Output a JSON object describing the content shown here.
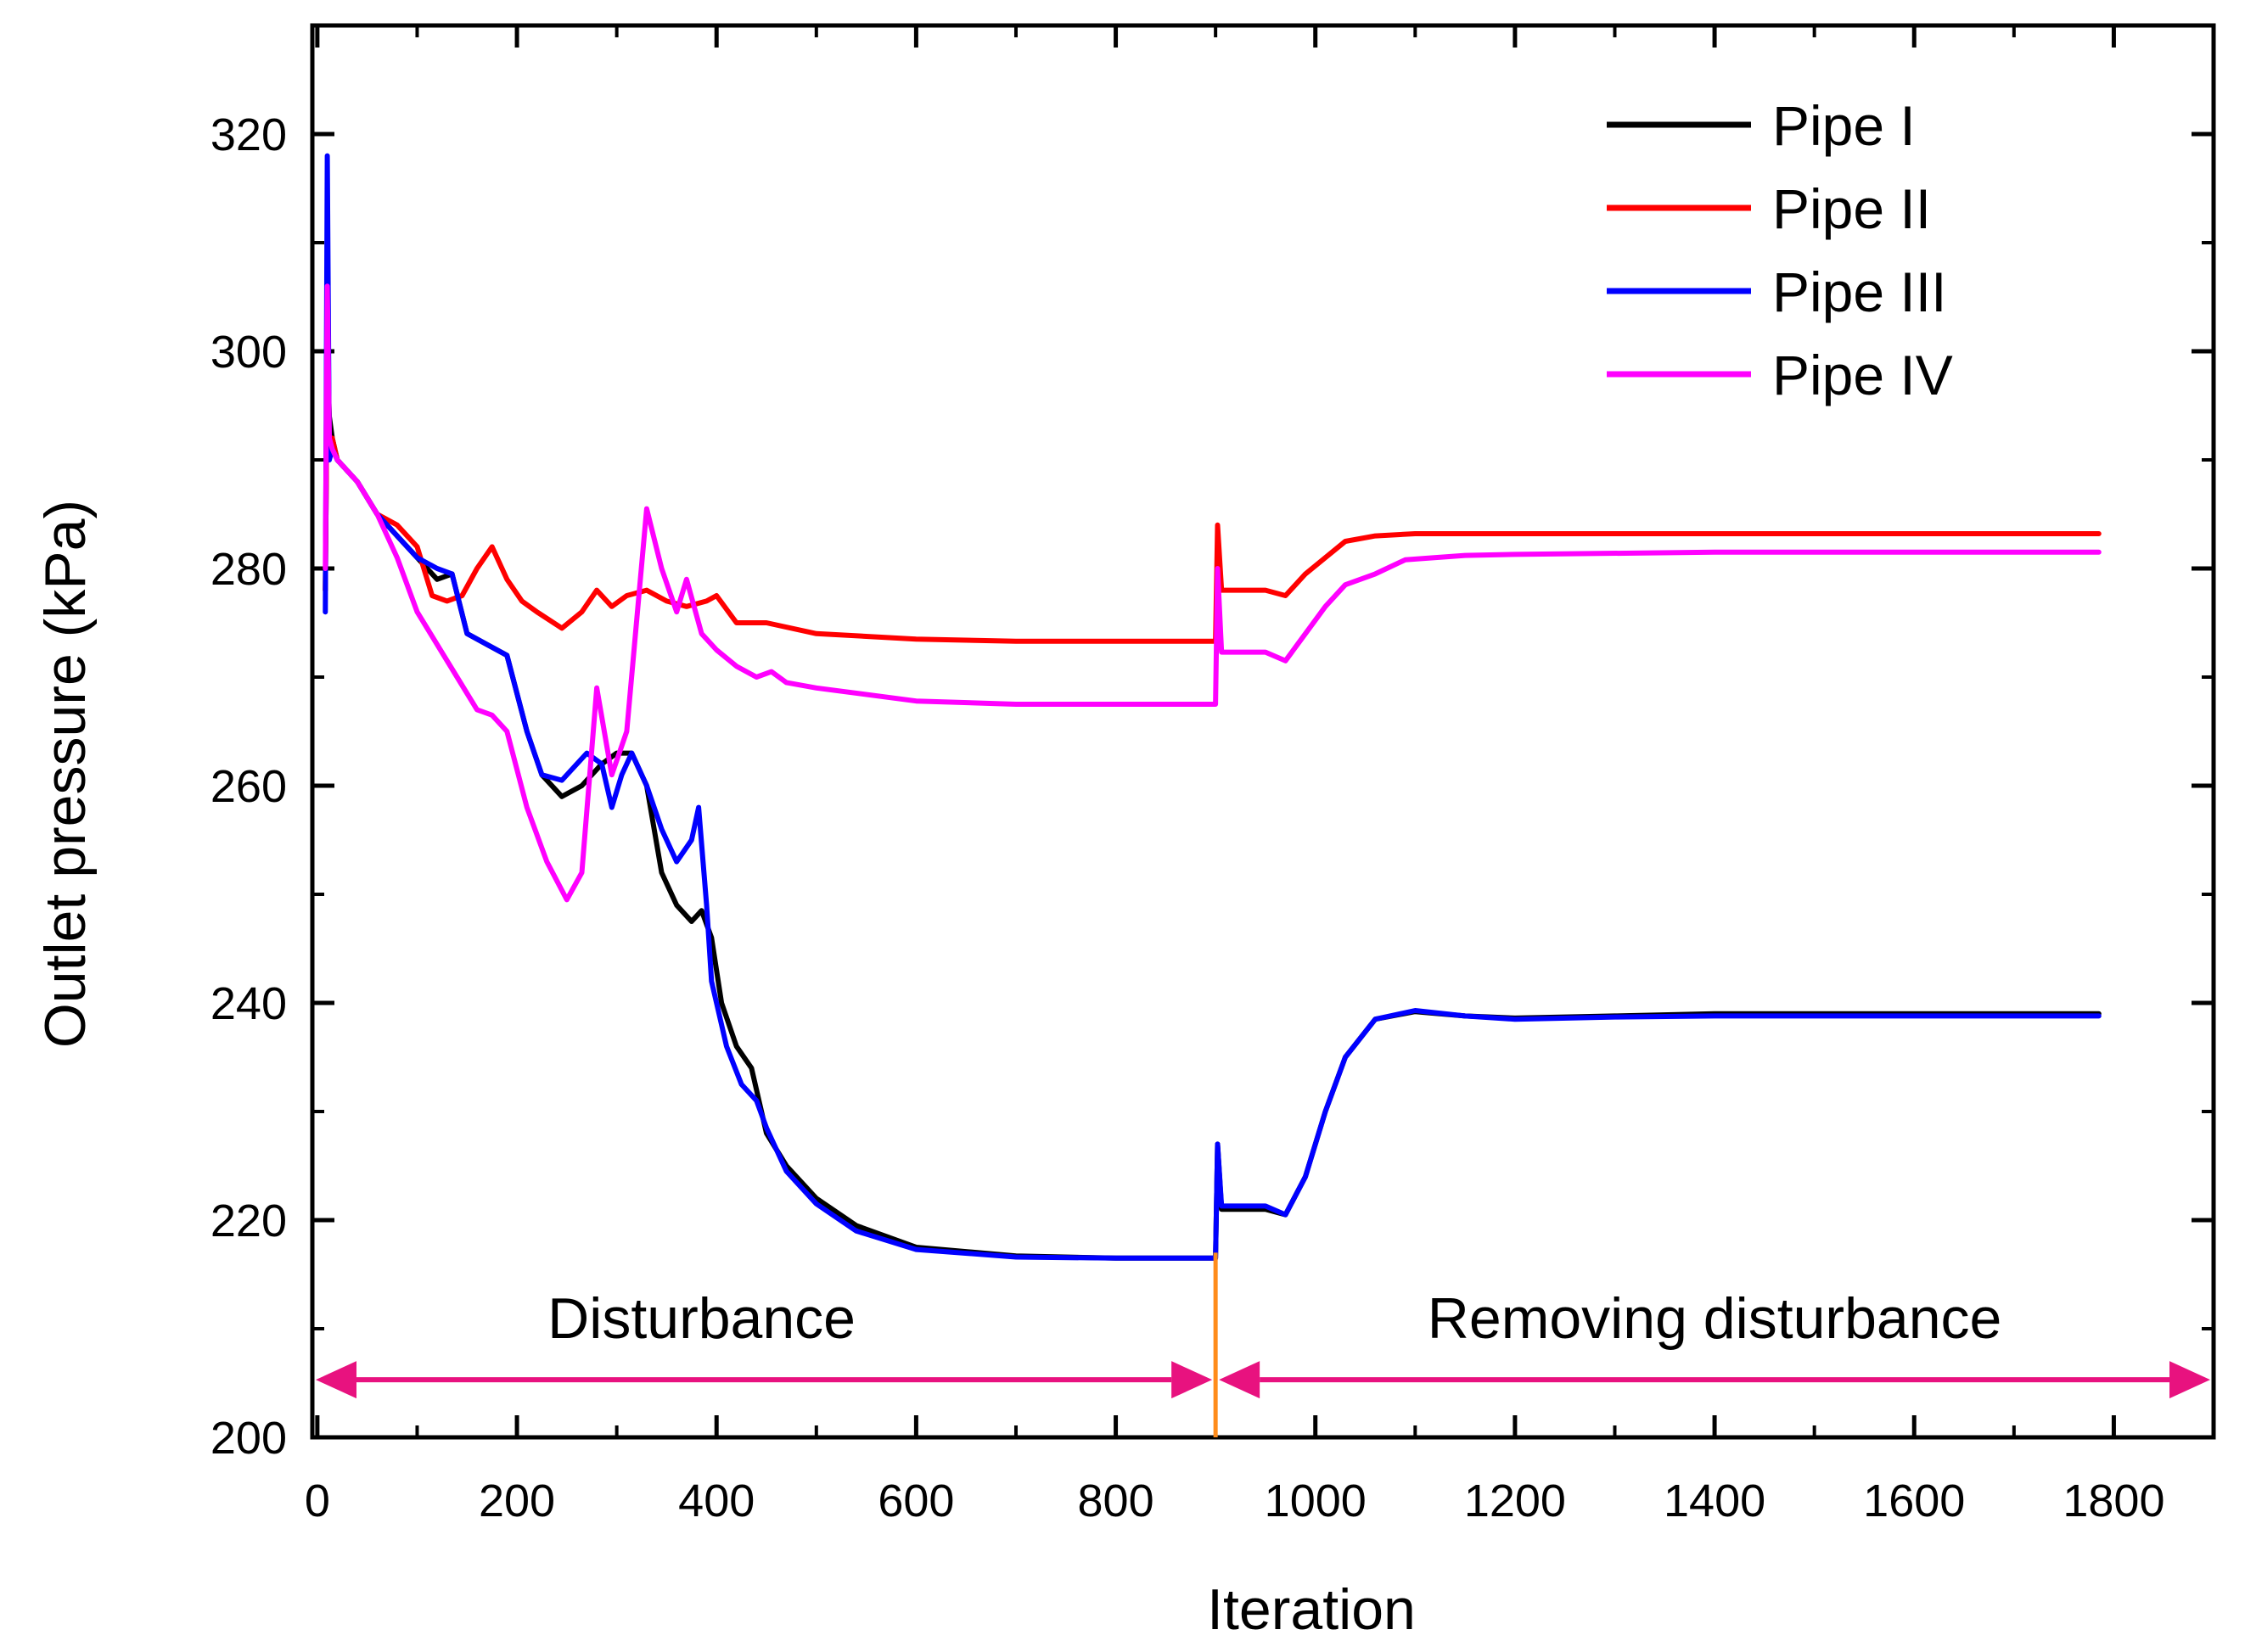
{
  "chart_data": {
    "type": "line",
    "title": "",
    "xlabel": "Iteration",
    "ylabel": "Outlet pressure (kPa)",
    "xlim": [
      -5,
      1900
    ],
    "ylim": [
      200,
      330
    ],
    "xticks": [
      0,
      200,
      400,
      600,
      800,
      1000,
      1200,
      1400,
      1600,
      1800
    ],
    "yticks": [
      200,
      220,
      240,
      260,
      280,
      300,
      320
    ],
    "legend_position": "top-right",
    "series": [
      {
        "name": "Pipe I",
        "color": "#000000",
        "points": [
          [
            8,
            278
          ],
          [
            10,
            300
          ],
          [
            12,
            294
          ],
          [
            15,
            292
          ],
          [
            20,
            290
          ],
          [
            40,
            288
          ],
          [
            60,
            285
          ],
          [
            80,
            283
          ],
          [
            100,
            281
          ],
          [
            120,
            279
          ],
          [
            135,
            279.5
          ],
          [
            150,
            274
          ],
          [
            170,
            273
          ],
          [
            190,
            272
          ],
          [
            210,
            265
          ],
          [
            225,
            261
          ],
          [
            245,
            259
          ],
          [
            265,
            260
          ],
          [
            285,
            262
          ],
          [
            300,
            263
          ],
          [
            315,
            263
          ],
          [
            330,
            260
          ],
          [
            345,
            252
          ],
          [
            360,
            249
          ],
          [
            375,
            247.5
          ],
          [
            385,
            248.5
          ],
          [
            395,
            246
          ],
          [
            405,
            240
          ],
          [
            420,
            236
          ],
          [
            435,
            234
          ],
          [
            450,
            228
          ],
          [
            470,
            225
          ],
          [
            500,
            222
          ],
          [
            540,
            219.5
          ],
          [
            600,
            217.5
          ],
          [
            700,
            216.7
          ],
          [
            800,
            216.5
          ],
          [
            900,
            216.5
          ],
          [
            902,
            227
          ],
          [
            906,
            221
          ],
          [
            950,
            221
          ],
          [
            970,
            220.5
          ],
          [
            990,
            224
          ],
          [
            1010,
            230
          ],
          [
            1030,
            235
          ],
          [
            1060,
            238.5
          ],
          [
            1100,
            239.2
          ],
          [
            1150,
            238.8
          ],
          [
            1200,
            238.6
          ],
          [
            1300,
            238.8
          ],
          [
            1400,
            239
          ],
          [
            1500,
            239
          ],
          [
            1600,
            239
          ],
          [
            1700,
            239
          ],
          [
            1785,
            239
          ]
        ]
      },
      {
        "name": "Pipe II",
        "color": "#ff0000",
        "points": [
          [
            8,
            278
          ],
          [
            10,
            300
          ],
          [
            12,
            292
          ],
          [
            15,
            292
          ],
          [
            20,
            290
          ],
          [
            40,
            288
          ],
          [
            60,
            285
          ],
          [
            80,
            284
          ],
          [
            100,
            282
          ],
          [
            115,
            277.5
          ],
          [
            130,
            277
          ],
          [
            145,
            277.5
          ],
          [
            160,
            280
          ],
          [
            175,
            282
          ],
          [
            190,
            279
          ],
          [
            205,
            277
          ],
          [
            220,
            276
          ],
          [
            245,
            274.5
          ],
          [
            265,
            276
          ],
          [
            280,
            278
          ],
          [
            295,
            276.5
          ],
          [
            310,
            277.5
          ],
          [
            330,
            278
          ],
          [
            350,
            277
          ],
          [
            370,
            276.5
          ],
          [
            390,
            277
          ],
          [
            400,
            277.5
          ],
          [
            420,
            275
          ],
          [
            450,
            275
          ],
          [
            500,
            274
          ],
          [
            600,
            273.5
          ],
          [
            700,
            273.3
          ],
          [
            800,
            273.3
          ],
          [
            900,
            273.3
          ],
          [
            902,
            284
          ],
          [
            906,
            278
          ],
          [
            950,
            278
          ],
          [
            970,
            277.5
          ],
          [
            990,
            279.5
          ],
          [
            1010,
            281
          ],
          [
            1030,
            282.5
          ],
          [
            1060,
            283
          ],
          [
            1100,
            283.2
          ],
          [
            1200,
            283.2
          ],
          [
            1400,
            283.2
          ],
          [
            1600,
            283.2
          ],
          [
            1785,
            283.2
          ]
        ]
      },
      {
        "name": "Pipe III",
        "color": "#0000ff",
        "points": [
          [
            8,
            276
          ],
          [
            10,
            318
          ],
          [
            12,
            290
          ],
          [
            15,
            291
          ],
          [
            20,
            290
          ],
          [
            40,
            288
          ],
          [
            60,
            285
          ],
          [
            80,
            283
          ],
          [
            100,
            281
          ],
          [
            120,
            280
          ],
          [
            135,
            279.5
          ],
          [
            150,
            274
          ],
          [
            170,
            273
          ],
          [
            190,
            272
          ],
          [
            210,
            265
          ],
          [
            225,
            261
          ],
          [
            245,
            260.5
          ],
          [
            270,
            263
          ],
          [
            285,
            262
          ],
          [
            295,
            258
          ],
          [
            305,
            261
          ],
          [
            315,
            263
          ],
          [
            330,
            260
          ],
          [
            345,
            256
          ],
          [
            360,
            253
          ],
          [
            375,
            255
          ],
          [
            382,
            258
          ],
          [
            390,
            249
          ],
          [
            395,
            242
          ],
          [
            410,
            236
          ],
          [
            425,
            232.5
          ],
          [
            440,
            231
          ],
          [
            450,
            228.5
          ],
          [
            470,
            224.5
          ],
          [
            500,
            221.5
          ],
          [
            540,
            219
          ],
          [
            600,
            217.3
          ],
          [
            700,
            216.6
          ],
          [
            800,
            216.5
          ],
          [
            900,
            216.5
          ],
          [
            902,
            227
          ],
          [
            906,
            221.3
          ],
          [
            950,
            221.3
          ],
          [
            970,
            220.5
          ],
          [
            990,
            224
          ],
          [
            1010,
            230
          ],
          [
            1030,
            235
          ],
          [
            1060,
            238.5
          ],
          [
            1100,
            239.3
          ],
          [
            1150,
            238.8
          ],
          [
            1200,
            238.5
          ],
          [
            1300,
            238.7
          ],
          [
            1400,
            238.8
          ],
          [
            1500,
            238.8
          ],
          [
            1600,
            238.8
          ],
          [
            1700,
            238.8
          ],
          [
            1785,
            238.8
          ]
        ]
      },
      {
        "name": "Pipe IV",
        "color": "#ff00ff",
        "points": [
          [
            8,
            280
          ],
          [
            10,
            306
          ],
          [
            12,
            292
          ],
          [
            15,
            291
          ],
          [
            20,
            290
          ],
          [
            40,
            288
          ],
          [
            60,
            285
          ],
          [
            80,
            281
          ],
          [
            100,
            276
          ],
          [
            120,
            273
          ],
          [
            140,
            270
          ],
          [
            160,
            267
          ],
          [
            175,
            266.5
          ],
          [
            190,
            265
          ],
          [
            210,
            258
          ],
          [
            230,
            253
          ],
          [
            250,
            249.5
          ],
          [
            265,
            252
          ],
          [
            280,
            269
          ],
          [
            295,
            261
          ],
          [
            310,
            265
          ],
          [
            330,
            285.5
          ],
          [
            345,
            280
          ],
          [
            360,
            276
          ],
          [
            370,
            279
          ],
          [
            385,
            274
          ],
          [
            400,
            272.5
          ],
          [
            420,
            271
          ],
          [
            440,
            270
          ],
          [
            455,
            270.5
          ],
          [
            470,
            269.5
          ],
          [
            500,
            269
          ],
          [
            600,
            267.8
          ],
          [
            700,
            267.5
          ],
          [
            800,
            267.5
          ],
          [
            900,
            267.5
          ],
          [
            902,
            280
          ],
          [
            906,
            272.3
          ],
          [
            950,
            272.3
          ],
          [
            970,
            271.5
          ],
          [
            990,
            274
          ],
          [
            1010,
            276.5
          ],
          [
            1030,
            278.5
          ],
          [
            1060,
            279.5
          ],
          [
            1090,
            280.8
          ],
          [
            1150,
            281.2
          ],
          [
            1200,
            281.3
          ],
          [
            1400,
            281.5
          ],
          [
            1600,
            281.5
          ],
          [
            1785,
            281.5
          ]
        ]
      }
    ],
    "annotations": {
      "left_label": "Disturbance",
      "right_label": "Removing disturbance",
      "divider_x": 900,
      "divider_color": "#ff8c1a",
      "arrow_color": "#e8127f",
      "arrow_y": 205.3
    }
  }
}
